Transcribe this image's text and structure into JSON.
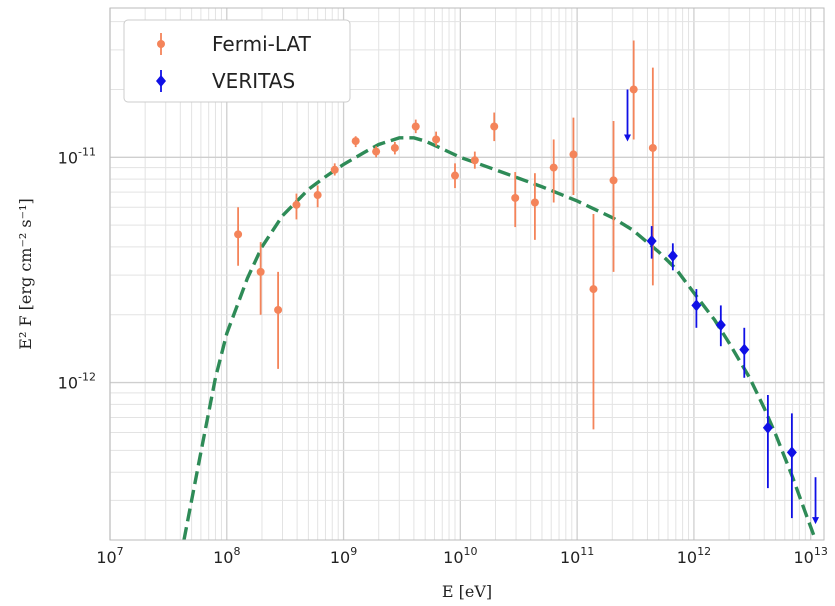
{
  "chart_data": {
    "type": "scatter",
    "xlabel": "E [eV]",
    "ylabel": "E² F [erg cm⁻² s⁻¹]",
    "xscale": "log",
    "yscale": "log",
    "xlim": [
      10000000.0,
      13000000000000.0
    ],
    "ylim": [
      2e-13,
      4.6e-11
    ],
    "grid": true,
    "legend_position": "top-left",
    "x_ticks": [
      {
        "base": "10",
        "exp": "7",
        "value": 10000000.0
      },
      {
        "base": "10",
        "exp": "8",
        "value": 100000000.0
      },
      {
        "base": "10",
        "exp": "9",
        "value": 1000000000.0
      },
      {
        "base": "10",
        "exp": "10",
        "value": 10000000000.0
      },
      {
        "base": "10",
        "exp": "11",
        "value": 100000000000.0
      },
      {
        "base": "10",
        "exp": "12",
        "value": 1000000000000.0
      },
      {
        "base": "10",
        "exp": "13",
        "value": 10000000000000.0
      }
    ],
    "y_ticks": [
      {
        "base": "10",
        "exp": "-11",
        "value": 1e-11
      },
      {
        "base": "10",
        "exp": "-12",
        "value": 1e-12
      }
    ],
    "series": [
      {
        "name": "Fermi-LAT",
        "color": "#f4845a",
        "marker": "circle",
        "points": [
          {
            "x": 125000000.0,
            "y": 4.55e-12,
            "ylo": 3.3e-12,
            "yhi": 6e-12
          },
          {
            "x": 195000000.0,
            "y": 3.1e-12,
            "ylo": 2e-12,
            "yhi": 4.2e-12
          },
          {
            "x": 275000000.0,
            "y": 2.1e-12,
            "ylo": 1.15e-12,
            "yhi": 3.1e-12
          },
          {
            "x": 395000000.0,
            "y": 6.15e-12,
            "ylo": 5.3e-12,
            "yhi": 6.9e-12
          },
          {
            "x": 600000000.0,
            "y": 6.8e-12,
            "ylo": 6e-12,
            "yhi": 7.5e-12
          },
          {
            "x": 840000000.0,
            "y": 8.8e-12,
            "ylo": 8.3e-12,
            "yhi": 9.4e-12
          },
          {
            "x": 1270000000.0,
            "y": 1.18e-11,
            "ylo": 1.11e-11,
            "yhi": 1.24e-11
          },
          {
            "x": 1900000000.0,
            "y": 1.06e-11,
            "ylo": 1e-11,
            "yhi": 1.12e-11
          },
          {
            "x": 2750000000.0,
            "y": 1.1e-11,
            "ylo": 1.03e-11,
            "yhi": 1.17e-11
          },
          {
            "x": 4150000000.0,
            "y": 1.37e-11,
            "ylo": 1.28e-11,
            "yhi": 1.47e-11
          },
          {
            "x": 6200000000.0,
            "y": 1.2e-11,
            "ylo": 1.12e-11,
            "yhi": 1.3e-11
          },
          {
            "x": 9000000000.0,
            "y": 8.3e-12,
            "ylo": 7.3e-12,
            "yhi": 9.4e-12
          },
          {
            "x": 13300000000.0,
            "y": 9.7e-12,
            "ylo": 8.9e-12,
            "yhi": 1.06e-11
          },
          {
            "x": 19500000000.0,
            "y": 1.37e-11,
            "ylo": 1.18e-11,
            "yhi": 1.58e-11
          },
          {
            "x": 29500000000.0,
            "y": 6.6e-12,
            "ylo": 4.9e-12,
            "yhi": 8.6e-12
          },
          {
            "x": 43500000000.0,
            "y": 6.3e-12,
            "ylo": 4.3e-12,
            "yhi": 8.5e-12
          },
          {
            "x": 63000000000.0,
            "y": 9e-12,
            "ylo": 6.3e-12,
            "yhi": 1.2e-11
          },
          {
            "x": 93000000000.0,
            "y": 1.03e-11,
            "ylo": 6.8e-12,
            "yhi": 1.5e-11
          },
          {
            "x": 138000000000.0,
            "y": 2.6e-12,
            "ylo": 6.2e-13,
            "yhi": 5.6e-12
          },
          {
            "x": 205000000000.0,
            "y": 7.9e-12,
            "ylo": 3.1e-12,
            "yhi": 1.45e-11
          },
          {
            "x": 305000000000.0,
            "y": 2e-11,
            "ylo": 1.2e-11,
            "yhi": 3.3e-11
          },
          {
            "x": 445000000000.0,
            "y": 1.1e-11,
            "ylo": 2.7e-12,
            "yhi": 2.5e-11
          }
        ]
      },
      {
        "name": "VERITAS",
        "color": "#1010e6",
        "marker": "diamond",
        "points": [
          {
            "x": 435000000000.0,
            "y": 4.25e-12,
            "ylo": 3.55e-12,
            "yhi": 4.95e-12
          },
          {
            "x": 660000000000.0,
            "y": 3.65e-12,
            "ylo": 3.15e-12,
            "yhi": 4.15e-12
          },
          {
            "x": 1050000000000.0,
            "y": 2.2e-12,
            "ylo": 1.75e-12,
            "yhi": 2.6e-12
          },
          {
            "x": 1700000000000.0,
            "y": 1.8e-12,
            "ylo": 1.45e-12,
            "yhi": 2.2e-12
          },
          {
            "x": 2700000000000.0,
            "y": 1.4e-12,
            "ylo": 1.05e-12,
            "yhi": 1.75e-12
          },
          {
            "x": 4300000000000.0,
            "y": 6.3e-13,
            "ylo": 3.4e-13,
            "yhi": 8.8e-13
          },
          {
            "x": 6900000000000.0,
            "y": 4.9e-13,
            "ylo": 2.5e-13,
            "yhi": 7.3e-13
          }
        ],
        "upper_limits": [
          {
            "x": 270000000000.0,
            "y": 2e-11,
            "yto": 1.2e-11
          },
          {
            "x": 11000000000000.0,
            "y": 3.8e-13,
            "yto": 2.4e-13
          }
        ]
      },
      {
        "color": "#2e8b57",
        "style": "dashed",
        "line": [
          {
            "x": 43000000.0,
            "y": 2e-13
          },
          {
            "x": 60000000.0,
            "y": 4.9e-13
          },
          {
            "x": 80000000.0,
            "y": 1.05e-12
          },
          {
            "x": 100000000.0,
            "y": 1.65e-12
          },
          {
            "x": 150000000.0,
            "y": 2.9e-12
          },
          {
            "x": 200000000.0,
            "y": 4e-12
          },
          {
            "x": 300000000.0,
            "y": 5.5e-12
          },
          {
            "x": 500000000.0,
            "y": 7.2e-12
          },
          {
            "x": 700000000.0,
            "y": 8.2e-12
          },
          {
            "x": 1000000000.0,
            "y": 9.3e-12
          },
          {
            "x": 1500000000.0,
            "y": 1.05e-11
          },
          {
            "x": 2000000000.0,
            "y": 1.14e-11
          },
          {
            "x": 3000000000.0,
            "y": 1.22e-11
          },
          {
            "x": 4000000000.0,
            "y": 1.22e-11
          },
          {
            "x": 5000000000.0,
            "y": 1.18e-11
          },
          {
            "x": 7000000000.0,
            "y": 1.09e-11
          },
          {
            "x": 10000000000.0,
            "y": 1e-11
          },
          {
            "x": 20000000000.0,
            "y": 8.8e-12
          },
          {
            "x": 50000000000.0,
            "y": 7.4e-12
          },
          {
            "x": 100000000000.0,
            "y": 6.4e-12
          },
          {
            "x": 200000000000.0,
            "y": 5.4e-12
          },
          {
            "x": 300000000000.0,
            "y": 4.75e-12
          },
          {
            "x": 500000000000.0,
            "y": 3.8e-12
          },
          {
            "x": 700000000000.0,
            "y": 3.2e-12
          },
          {
            "x": 1000000000000.0,
            "y": 2.5e-12
          },
          {
            "x": 1500000000000.0,
            "y": 1.9e-12
          },
          {
            "x": 2000000000000.0,
            "y": 1.5e-12
          },
          {
            "x": 3000000000000.0,
            "y": 1.05e-12
          },
          {
            "x": 4000000000000.0,
            "y": 7.7e-13
          },
          {
            "x": 5000000000000.0,
            "y": 5.9e-13
          },
          {
            "x": 7000000000000.0,
            "y": 3.8e-13
          },
          {
            "x": 9000000000000.0,
            "y": 2.65e-13
          },
          {
            "x": 11000000000000.0,
            "y": 2e-13
          }
        ]
      }
    ]
  }
}
